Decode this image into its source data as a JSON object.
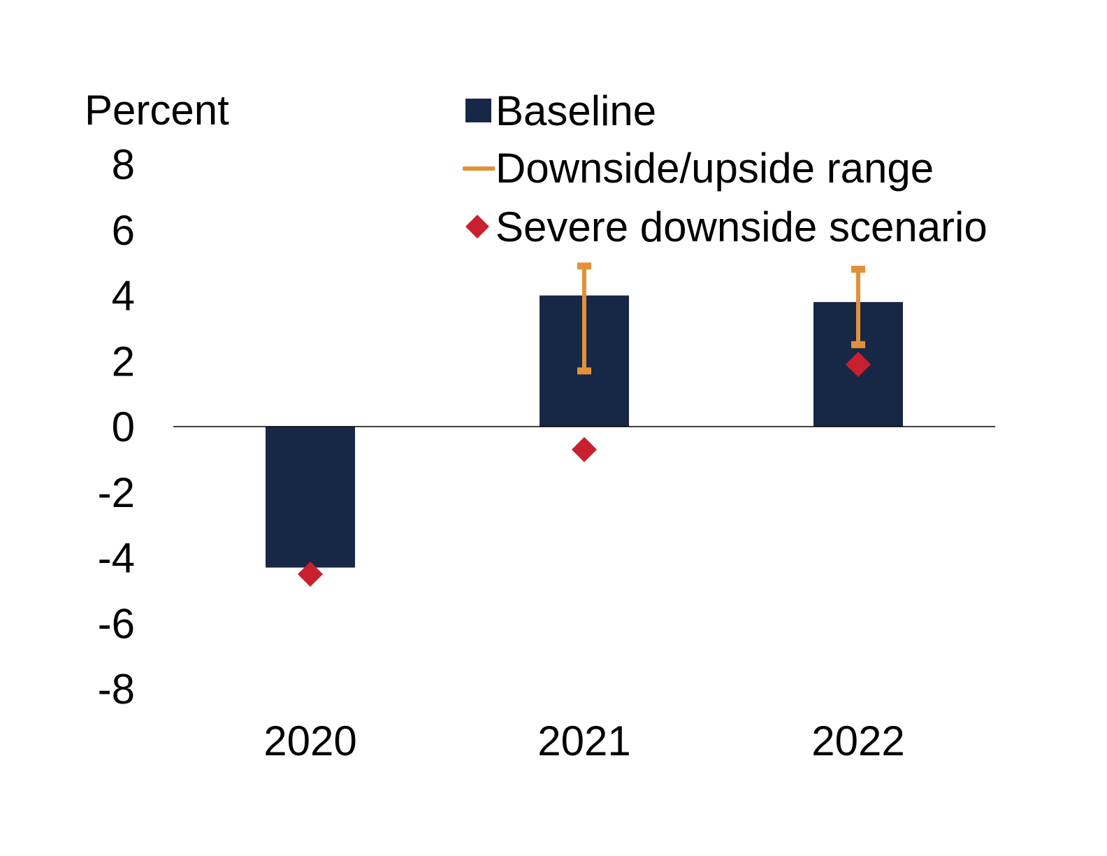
{
  "chart_data": {
    "type": "bar",
    "categories": [
      "2020",
      "2021",
      "2022"
    ],
    "ylabel": "Percent",
    "ylim": [
      -8,
      8
    ],
    "yticks": [
      8,
      6,
      4,
      2,
      0,
      -2,
      -4,
      -6,
      -8
    ],
    "ytick_labels": [
      "8",
      "6",
      "4",
      "2",
      "0",
      "-2",
      "-4",
      "-6",
      "-8"
    ],
    "grid": false,
    "legend_position": "top-right",
    "series": [
      {
        "name": "Baseline",
        "kind": "bar",
        "color": "#172846",
        "values": [
          -4.3,
          4.0,
          3.8
        ]
      },
      {
        "name": "Downside/upside range",
        "kind": "range",
        "color": "#E2913A",
        "low": [
          null,
          1.7,
          2.5
        ],
        "high": [
          null,
          4.9,
          4.8
        ]
      },
      {
        "name": "Severe downside scenario",
        "kind": "marker",
        "marker": "diamond",
        "color": "#C8202F",
        "values": [
          -4.5,
          -0.7,
          1.9
        ]
      }
    ]
  }
}
